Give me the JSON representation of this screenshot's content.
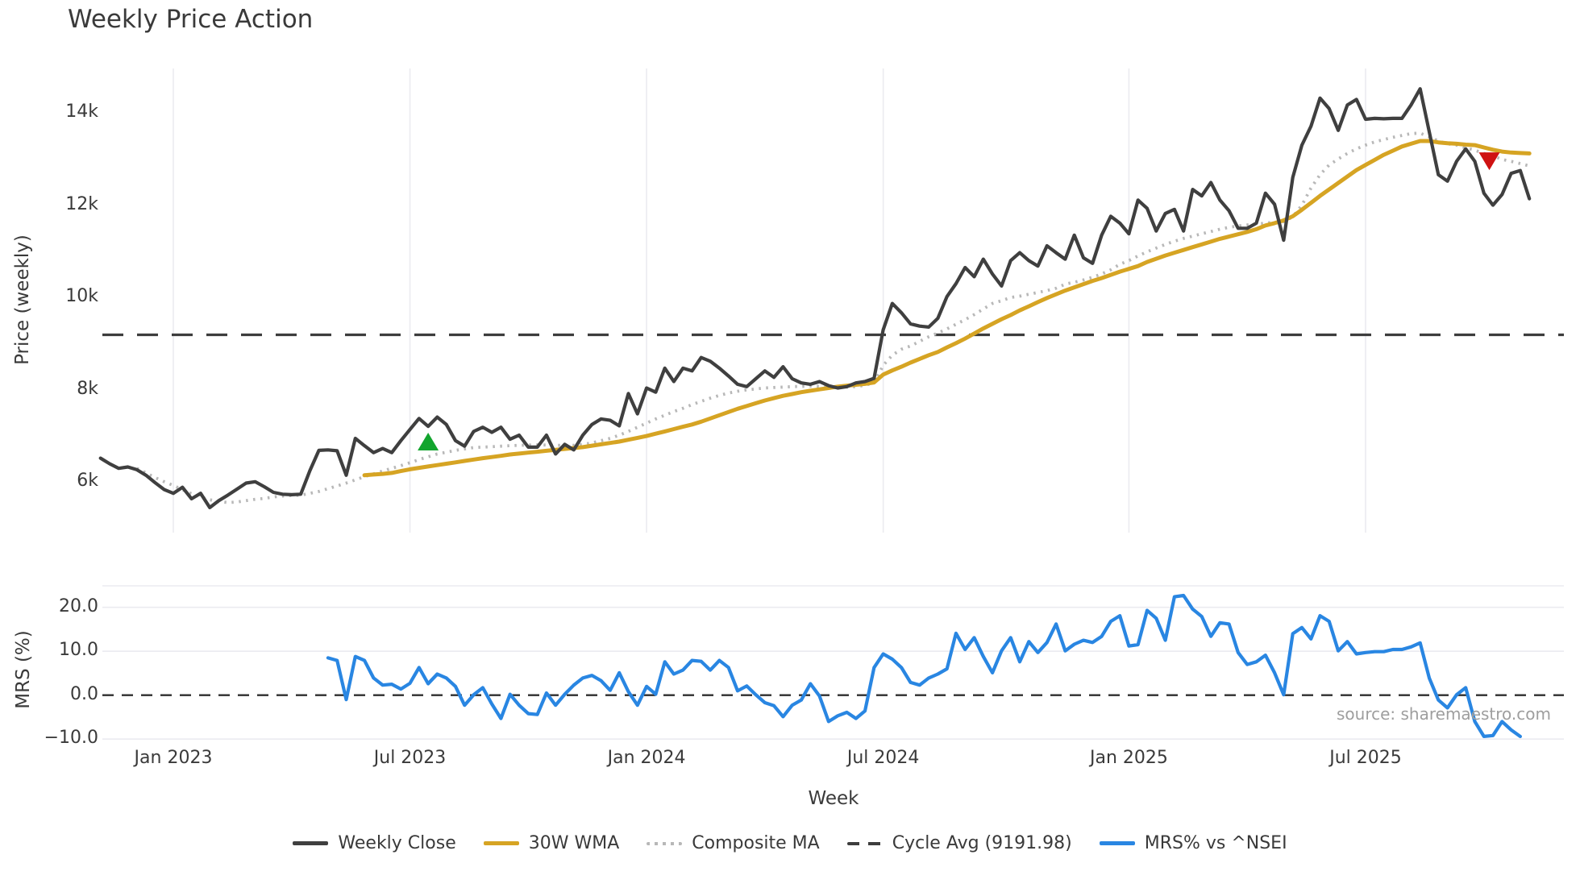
{
  "title": "Weekly Price Action",
  "source_text": "source: sharemaestro.com",
  "xlabel": "Week",
  "price_axis_label": "Price (weekly)",
  "mrs_axis_label": "MRS (%)",
  "colors": {
    "weekly_close": "#3f3f3f",
    "wma_30w": "#d6a423",
    "composite_ma": "#b8b8b8",
    "cycle_avg": "#3d3d3d",
    "mrs_line": "#2986e2",
    "buy_marker": "#12a52e",
    "sell_marker": "#cf1212",
    "gridline": "#ebebf0",
    "zero_dash": "#2e2e2e",
    "text": "#3a3a3a",
    "source": "#9e9e9e"
  },
  "legend": [
    {
      "label": "Weekly Close",
      "style": "solid",
      "color": "#3f3f3f"
    },
    {
      "label": "30W WMA",
      "style": "solid",
      "color": "#d6a423"
    },
    {
      "label": "Composite MA",
      "style": "dotted",
      "color": "#b8b8b8"
    },
    {
      "label": "Cycle Avg (9191.98)",
      "style": "dashed",
      "color": "#3d3d3d"
    },
    {
      "label": "MRS% vs ^NSEI",
      "style": "solid",
      "color": "#2986e2"
    }
  ],
  "chart_data": {
    "type": "line",
    "x_unit": "weekly",
    "xlabel": "Week",
    "xlim_weeks": [
      0,
      160
    ],
    "xticks": [
      {
        "week": 8,
        "label": "Jan 2023"
      },
      {
        "week": 34,
        "label": "Jul 2023"
      },
      {
        "week": 60,
        "label": "Jan 2024"
      },
      {
        "week": 86,
        "label": "Jul 2024"
      },
      {
        "week": 113,
        "label": "Jan 2025"
      },
      {
        "week": 139,
        "label": "Jul 2025"
      }
    ],
    "panels": [
      {
        "name": "price",
        "ylabel": "Price (weekly)",
        "ylim": [
          4900,
          15000
        ],
        "grid": "vertical-only",
        "yticks": [
          {
            "value": 14000,
            "label": "14k"
          },
          {
            "value": 12000,
            "label": "12k"
          },
          {
            "value": 10000,
            "label": "10k"
          },
          {
            "value": 8000,
            "label": "8k"
          },
          {
            "value": 6000,
            "label": "6k"
          }
        ],
        "cycle_avg": 9191.98,
        "series": [
          {
            "name": "Weekly Close",
            "color": "#3f3f3f",
            "style": "solid",
            "start_week": 0,
            "values": [
              6520,
              6400,
              6300,
              6330,
              6270,
              6150,
              5990,
              5840,
              5760,
              5890,
              5640,
              5760,
              5450,
              5600,
              5720,
              5850,
              5980,
              6010,
              5900,
              5780,
              5740,
              5730,
              5740,
              6250,
              6690,
              6700,
              6680,
              6150,
              6950,
              6790,
              6640,
              6730,
              6640,
              6900,
              7140,
              7380,
              7210,
              7410,
              7250,
              6900,
              6780,
              7100,
              7190,
              7080,
              7190,
              6930,
              7020,
              6760,
              6760,
              7020,
              6610,
              6820,
              6700,
              7020,
              7250,
              7370,
              7340,
              7220,
              7920,
              7480,
              8040,
              7950,
              8470,
              8180,
              8470,
              8410,
              8700,
              8620,
              8470,
              8300,
              8120,
              8070,
              8240,
              8410,
              8270,
              8500,
              8240,
              8150,
              8120,
              8180,
              8090,
              8040,
              8070,
              8150,
              8180,
              8250,
              9300,
              9870,
              9670,
              9430,
              9380,
              9360,
              9550,
              10020,
              10300,
              10650,
              10450,
              10830,
              10510,
              10250,
              10800,
              10970,
              10800,
              10680,
              11120,
              10970,
              10830,
              11350,
              10860,
              10740,
              11350,
              11760,
              11610,
              11380,
              12110,
              11930,
              11440,
              11820,
              11910,
              11440,
              12340,
              12200,
              12490,
              12110,
              11880,
              11500,
              11500,
              11610,
              12260,
              12020,
              11240,
              12600,
              13300,
              13710,
              14320,
              14090,
              13620,
              14170,
              14290,
              13860,
              13880,
              13870,
              13880,
              13880,
              14170,
              14520,
              13590,
              12660,
              12520,
              12950,
              13220,
              12950,
              12260,
              12000,
              12230,
              12690,
              12750,
              12140
            ]
          },
          {
            "name": "30W WMA",
            "color": "#d6a423",
            "style": "solid",
            "start_week": 29,
            "values": [
              6150,
              6165,
              6180,
              6200,
              6240,
              6280,
              6310,
              6340,
              6370,
              6400,
              6430,
              6460,
              6490,
              6520,
              6545,
              6570,
              6600,
              6620,
              6640,
              6660,
              6680,
              6700,
              6720,
              6740,
              6760,
              6790,
              6820,
              6850,
              6880,
              6920,
              6960,
              7000,
              7050,
              7100,
              7150,
              7200,
              7250,
              7310,
              7380,
              7450,
              7520,
              7590,
              7650,
              7710,
              7770,
              7820,
              7870,
              7910,
              7950,
              7980,
              8010,
              8040,
              8070,
              8090,
              8110,
              8130,
              8160,
              8330,
              8420,
              8500,
              8590,
              8670,
              8750,
              8820,
              8920,
              9010,
              9110,
              9220,
              9330,
              9430,
              9530,
              9620,
              9720,
              9810,
              9900,
              9990,
              10070,
              10150,
              10220,
              10290,
              10360,
              10420,
              10490,
              10560,
              10620,
              10680,
              10770,
              10840,
              10910,
              10970,
              11030,
              11090,
              11150,
              11210,
              11270,
              11320,
              11370,
              11420,
              11480,
              11560,
              11610,
              11670,
              11760,
              11900,
              12050,
              12200,
              12340,
              12480,
              12620,
              12760,
              12870,
              12980,
              13090,
              13180,
              13270,
              13330,
              13390,
              13390,
              13360,
              13340,
              13330,
              13310,
              13300,
              13250,
              13200,
              13160,
              13140,
              13130,
              13120
            ]
          },
          {
            "name": "Composite MA",
            "color": "#b8b8b8",
            "style": "dotted",
            "start_week": 4,
            "values": [
              6300,
              6200,
              6100,
              6010,
              5930,
              5840,
              5750,
              5680,
              5620,
              5580,
              5560,
              5570,
              5600,
              5630,
              5650,
              5680,
              5700,
              5710,
              5720,
              5760,
              5800,
              5860,
              5920,
              5980,
              6050,
              6120,
              6180,
              6240,
              6300,
              6360,
              6420,
              6490,
              6550,
              6610,
              6650,
              6690,
              6720,
              6750,
              6760,
              6770,
              6780,
              6790,
              6800,
              6805,
              6810,
              6805,
              6800,
              6800,
              6800,
              6820,
              6850,
              6900,
              6950,
              7020,
              7100,
              7190,
              7280,
              7370,
              7450,
              7530,
              7600,
              7680,
              7750,
              7820,
              7880,
              7930,
              7970,
              8000,
              8020,
              8040,
              8050,
              8060,
              8070,
              8075,
              8080,
              8075,
              8070,
              8060,
              8060,
              8070,
              8100,
              8150,
              8530,
              8750,
              8880,
              8950,
              9050,
              9150,
              9230,
              9320,
              9420,
              9520,
              9630,
              9750,
              9870,
              9930,
              10000,
              10030,
              10070,
              10110,
              10150,
              10200,
              10290,
              10330,
              10380,
              10440,
              10510,
              10600,
              10720,
              10800,
              10900,
              10990,
              11070,
              11150,
              11220,
              11280,
              11330,
              11380,
              11430,
              11480,
              11520,
              11550,
              11570,
              11590,
              11610,
              11630,
              11640,
              11750,
              12000,
              12370,
              12660,
              12870,
              13000,
              13120,
              13220,
              13300,
              13370,
              13420,
              13470,
              13510,
              13550,
              13560,
              13480,
              13390,
              13330,
              13300,
              13240,
              13190,
              13120,
              13070,
              12990,
              12950,
              12900,
              12850
            ]
          },
          {
            "name": "Cycle Avg",
            "color": "#3d3d3d",
            "style": "dashed",
            "constant": 9191.98
          }
        ],
        "markers": [
          {
            "name": "buy-signal",
            "shape": "triangle-up",
            "color": "#12a52e",
            "week": 36,
            "value": 6880
          },
          {
            "name": "sell-signal",
            "shape": "triangle-down",
            "color": "#cf1212",
            "week": 152.6,
            "value": 12950
          }
        ]
      },
      {
        "name": "mrs",
        "ylabel": "MRS (%)",
        "ylim": [
          -12.5,
          25
        ],
        "grid": "horizontal-only",
        "gridline_values": [
          20,
          10,
          -10
        ],
        "zero_line": 0,
        "yticks": [
          {
            "value": 20,
            "label": "20.0"
          },
          {
            "value": 10,
            "label": "10.0"
          },
          {
            "value": 0,
            "label": "0.0"
          },
          {
            "value": -10,
            "label": "−10.0"
          }
        ],
        "series": [
          {
            "name": "MRS% vs ^NSEI",
            "color": "#2986e2",
            "style": "solid",
            "start_week": 25,
            "values": [
              8.5,
              7.9,
              -1.0,
              8.8,
              7.9,
              3.9,
              2.3,
              2.5,
              1.4,
              2.7,
              6.3,
              2.6,
              4.8,
              3.9,
              2.0,
              -2.3,
              0.1,
              1.7,
              -2.0,
              -5.3,
              0.2,
              -2.3,
              -4.2,
              -4.4,
              0.5,
              -2.3,
              0.2,
              2.3,
              3.9,
              4.5,
              3.3,
              1.1,
              5.1,
              0.8,
              -2.3,
              2.0,
              0.2,
              7.6,
              4.8,
              5.7,
              7.9,
              7.7,
              5.7,
              7.9,
              6.3,
              1.0,
              2.1,
              0.1,
              -1.7,
              -2.4,
              -4.9,
              -2.3,
              -1.1,
              2.6,
              -0.2,
              -6.0,
              -4.7,
              -3.9,
              -5.3,
              -3.6,
              6.3,
              9.4,
              8.2,
              6.3,
              2.9,
              2.3,
              3.9,
              4.8,
              6.0,
              14.1,
              10.4,
              13.1,
              8.8,
              5.1,
              10.1,
              13.1,
              7.6,
              12.2,
              9.7,
              12.0,
              16.2,
              10.1,
              11.6,
              12.5,
              12.0,
              13.4,
              16.8,
              18.1,
              11.2,
              11.5,
              19.3,
              17.5,
              12.5,
              22.4,
              22.7,
              19.6,
              17.9,
              13.4,
              16.5,
              16.2,
              9.7,
              7.0,
              7.6,
              9.1,
              5.1,
              0.1,
              14.0,
              15.4,
              12.8,
              18.1,
              16.8,
              10.1,
              12.2,
              9.4,
              9.7,
              9.9,
              9.9,
              10.4,
              10.4,
              11.0,
              11.9,
              3.9,
              -1.1,
              -2.9,
              0.1,
              1.7,
              -6.0,
              -9.4,
              -9.2,
              -6.0,
              -7.9,
              -9.4
            ]
          }
        ]
      }
    ]
  }
}
